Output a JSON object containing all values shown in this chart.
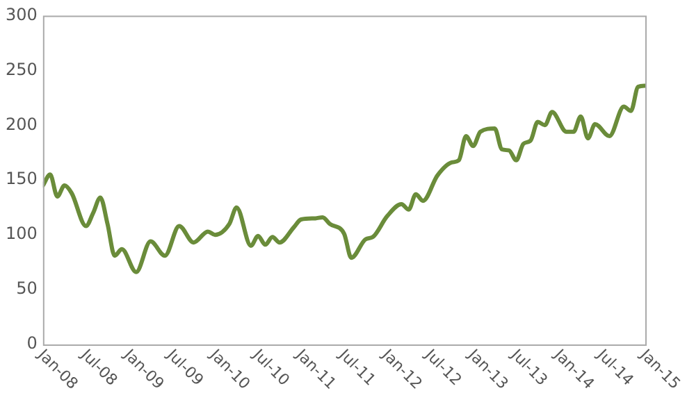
{
  "chart_data": {
    "type": "line",
    "x": [
      "2008-01",
      "2008-02",
      "2008-03",
      "2008-04",
      "2008-05",
      "2008-07",
      "2008-08",
      "2008-09",
      "2008-10",
      "2008-11",
      "2008-12",
      "2009-02",
      "2009-04",
      "2009-06",
      "2009-08",
      "2009-10",
      "2009-12",
      "2010-01",
      "2010-03",
      "2010-04",
      "2010-06",
      "2010-07",
      "2010-08",
      "2010-09",
      "2010-10",
      "2010-12",
      "2011-01",
      "2011-03",
      "2011-04",
      "2011-05",
      "2011-07",
      "2011-08",
      "2011-10",
      "2011-11",
      "2012-01",
      "2012-03",
      "2012-04",
      "2012-05",
      "2012-06",
      "2012-08",
      "2012-10",
      "2012-11",
      "2012-12",
      "2013-01",
      "2013-02",
      "2013-04",
      "2013-05",
      "2013-06",
      "2013-07",
      "2013-08",
      "2013-09",
      "2013-10",
      "2013-11",
      "2013-12",
      "2014-02",
      "2014-03",
      "2014-04",
      "2014-05",
      "2014-06",
      "2014-08",
      "2014-10",
      "2014-11",
      "2014-12",
      "2015-01"
    ],
    "series": [
      {
        "color": "#6a8c3a",
        "values": [
          145,
          155,
          135,
          145,
          138,
          108,
          120,
          134,
          110,
          81,
          87,
          66,
          94,
          81,
          108,
          93,
          103,
          100,
          110,
          125,
          90,
          99,
          91,
          98,
          93,
          107,
          114,
          115,
          116,
          110,
          101,
          79,
          96,
          98,
          117,
          128,
          123,
          137,
          131,
          154,
          166,
          168,
          190,
          181,
          194,
          197,
          178,
          177,
          168,
          183,
          186,
          203,
          200,
          212,
          194,
          194,
          208,
          188,
          201,
          190,
          217,
          213,
          235,
          236
        ]
      }
    ],
    "xlim": [
      "2008-01",
      "2015-01"
    ],
    "xticks": [
      {
        "value": "2008-01",
        "label": "Jan-08"
      },
      {
        "value": "2008-07",
        "label": "Jul-08"
      },
      {
        "value": "2009-01",
        "label": "Jan-09"
      },
      {
        "value": "2009-07",
        "label": "Jul-09"
      },
      {
        "value": "2010-01",
        "label": "Jan-10"
      },
      {
        "value": "2010-07",
        "label": "Jul-10"
      },
      {
        "value": "2011-01",
        "label": "Jan-11"
      },
      {
        "value": "2011-07",
        "label": "Jul-11"
      },
      {
        "value": "2012-01",
        "label": "Jan-12"
      },
      {
        "value": "2012-07",
        "label": "Jul-12"
      },
      {
        "value": "2013-01",
        "label": "Jan-13"
      },
      {
        "value": "2013-07",
        "label": "Jul-13"
      },
      {
        "value": "2014-01",
        "label": "Jan-14"
      },
      {
        "value": "2014-07",
        "label": "Jul-14"
      },
      {
        "value": "2015-01",
        "label": "Jan-15"
      }
    ],
    "ylim": [
      0,
      300
    ],
    "yticks": [
      0,
      50,
      100,
      150,
      200,
      250,
      300
    ],
    "grid": false,
    "legend": false,
    "marker": "none",
    "line_style": "solid"
  }
}
